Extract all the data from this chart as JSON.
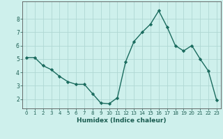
{
  "x": [
    0,
    1,
    2,
    3,
    4,
    5,
    6,
    7,
    8,
    9,
    10,
    11,
    12,
    13,
    14,
    15,
    16,
    17,
    18,
    19,
    20,
    21,
    22,
    23
  ],
  "y": [
    5.1,
    5.1,
    4.5,
    4.2,
    3.7,
    3.3,
    3.1,
    3.1,
    2.4,
    1.7,
    1.65,
    2.1,
    4.8,
    6.3,
    7.0,
    7.6,
    8.6,
    7.4,
    6.0,
    5.6,
    6.0,
    5.0,
    4.1,
    1.9
  ],
  "line_color": "#1a6b5e",
  "marker": "D",
  "marker_size": 2.2,
  "bg_color": "#cef0ec",
  "grid_color": "#b0d8d3",
  "axis_label_color": "#1a5c50",
  "xlabel": "Humidex (Indice chaleur)",
  "xlim": [
    -0.5,
    23.5
  ],
  "ylim": [
    1.3,
    9.3
  ],
  "yticks": [
    2,
    3,
    4,
    5,
    6,
    7,
    8
  ],
  "xticks": [
    0,
    1,
    2,
    3,
    4,
    5,
    6,
    7,
    8,
    9,
    10,
    11,
    12,
    13,
    14,
    15,
    16,
    17,
    18,
    19,
    20,
    21,
    22,
    23
  ]
}
